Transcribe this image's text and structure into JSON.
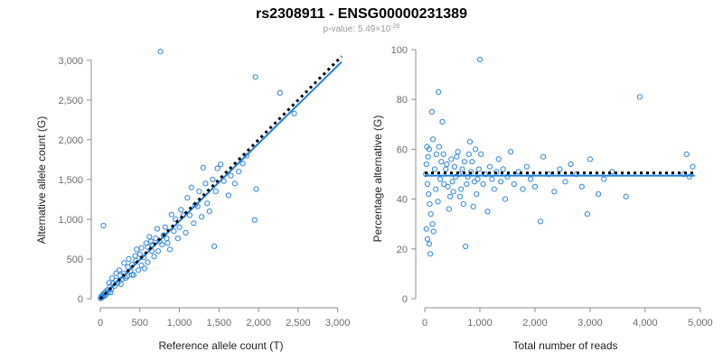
{
  "title": "rs2308911 - ENSG00000231389",
  "subtitle": {
    "prefix": "p-value: 5.49×10",
    "exponent": "-28"
  },
  "colors": {
    "points": "#2e86de",
    "fit_line": "#1f7fe0",
    "reference_line": "#000000"
  },
  "chart_data": [
    {
      "id": "left",
      "type": "scatter",
      "xlabel": "Reference allele count (T)",
      "ylabel": "Alternative allele count (G)",
      "xlim": [
        0,
        3050
      ],
      "ylim": [
        0,
        3100
      ],
      "xticks": [
        0,
        500,
        1000,
        1500,
        2000,
        2500,
        3000
      ],
      "xtick_labels": [
        "0",
        "500",
        "1,000",
        "1,500",
        "2,000",
        "2,500",
        "3,000"
      ],
      "yticks": [
        0,
        500,
        1000,
        1500,
        2000,
        2500,
        3000
      ],
      "ytick_labels": [
        "0",
        "500",
        "1,000",
        "1,500",
        "2,000",
        "2,500",
        "3,000"
      ],
      "fit_line": {
        "x": [
          0,
          3050
        ],
        "y": [
          0,
          2980
        ]
      },
      "reference_line": {
        "x": [
          0,
          3050
        ],
        "y": [
          0,
          3050
        ]
      },
      "points": [
        [
          760,
          3110
        ],
        [
          1960,
          2790
        ],
        [
          2270,
          2590
        ],
        [
          2450,
          2330
        ],
        [
          40,
          920
        ],
        [
          1950,
          990
        ],
        [
          1970,
          1380
        ],
        [
          1440,
          660
        ],
        [
          1480,
          1640
        ],
        [
          1520,
          1690
        ],
        [
          1620,
          1300
        ],
        [
          1700,
          1450
        ],
        [
          1800,
          1700
        ],
        [
          1300,
          1650
        ],
        [
          1420,
          1500
        ],
        [
          1250,
          1350
        ],
        [
          1150,
          1400
        ],
        [
          1200,
          1180
        ],
        [
          1350,
          1200
        ],
        [
          1100,
          1270
        ],
        [
          1050,
          1050
        ],
        [
          950,
          1000
        ],
        [
          900,
          1060
        ],
        [
          1000,
          900
        ],
        [
          850,
          700
        ],
        [
          800,
          800
        ],
        [
          750,
          720
        ],
        [
          700,
          760
        ],
        [
          650,
          600
        ],
        [
          600,
          650
        ],
        [
          550,
          520
        ],
        [
          500,
          560
        ],
        [
          450,
          480
        ],
        [
          400,
          430
        ],
        [
          380,
          350
        ],
        [
          350,
          400
        ],
        [
          300,
          320
        ],
        [
          280,
          250
        ],
        [
          250,
          290
        ],
        [
          220,
          200
        ],
        [
          200,
          230
        ],
        [
          180,
          160
        ],
        [
          160,
          190
        ],
        [
          140,
          120
        ],
        [
          120,
          150
        ],
        [
          100,
          80
        ],
        [
          90,
          110
        ],
        [
          80,
          60
        ],
        [
          70,
          90
        ],
        [
          60,
          40
        ],
        [
          50,
          70
        ],
        [
          40,
          30
        ],
        [
          30,
          50
        ],
        [
          25,
          20
        ],
        [
          20,
          35
        ],
        [
          15,
          10
        ],
        [
          10,
          25
        ],
        [
          5,
          5
        ],
        [
          300,
          450
        ],
        [
          420,
          300
        ],
        [
          520,
          420
        ],
        [
          620,
          780
        ],
        [
          680,
          530
        ],
        [
          730,
          600
        ],
        [
          820,
          900
        ],
        [
          880,
          620
        ],
        [
          930,
          850
        ],
        [
          980,
          760
        ],
        [
          1020,
          1120
        ],
        [
          1080,
          830
        ],
        [
          1130,
          1050
        ],
        [
          1180,
          950
        ],
        [
          1230,
          1160
        ],
        [
          1280,
          1030
        ],
        [
          1330,
          1450
        ],
        [
          1380,
          1100
        ],
        [
          1460,
          1350
        ],
        [
          1560,
          1480
        ],
        [
          1650,
          1550
        ],
        [
          1750,
          1600
        ],
        [
          1850,
          1800
        ],
        [
          560,
          380
        ],
        [
          600,
          460
        ],
        [
          640,
          720
        ],
        [
          460,
          620
        ],
        [
          480,
          360
        ],
        [
          360,
          500
        ],
        [
          320,
          260
        ],
        [
          240,
          360
        ],
        [
          260,
          180
        ],
        [
          200,
          320
        ],
        [
          150,
          260
        ],
        [
          130,
          80
        ],
        [
          110,
          200
        ],
        [
          580,
          700
        ],
        [
          660,
          680
        ],
        [
          720,
          880
        ],
        [
          780,
          680
        ],
        [
          840,
          760
        ],
        [
          520,
          640
        ],
        [
          440,
          540
        ],
        [
          400,
          300
        ],
        [
          340,
          280
        ]
      ]
    },
    {
      "id": "right",
      "type": "scatter",
      "xlabel": "Total number of reads",
      "ylabel": "Percentage alternative (G)",
      "xlim": [
        0,
        5100
      ],
      "ylim": [
        0,
        100
      ],
      "xticks": [
        0,
        1000,
        2000,
        3000,
        4000,
        5000
      ],
      "xtick_labels": [
        "0",
        "1,000",
        "2,000",
        "3,000",
        "4,000",
        "5,000"
      ],
      "yticks": [
        0,
        20,
        40,
        60,
        80,
        100
      ],
      "ytick_labels": [
        "0",
        "20",
        "40",
        "60",
        "80",
        "100"
      ],
      "fit_line": {
        "x": [
          0,
          4900
        ],
        "y": [
          49.4,
          49.4
        ]
      },
      "reference_line": {
        "x": [
          0,
          4900
        ],
        "y": [
          50.5,
          50.5
        ]
      },
      "points": [
        [
          1000,
          96
        ],
        [
          3900,
          81
        ],
        [
          250,
          83
        ],
        [
          130,
          75
        ],
        [
          320,
          71
        ],
        [
          40,
          61
        ],
        [
          80,
          60
        ],
        [
          60,
          57
        ],
        [
          30,
          54
        ],
        [
          20,
          50
        ],
        [
          50,
          46
        ],
        [
          70,
          42
        ],
        [
          90,
          38
        ],
        [
          110,
          34
        ],
        [
          140,
          30
        ],
        [
          30,
          28
        ],
        [
          50,
          24
        ],
        [
          80,
          22
        ],
        [
          100,
          18
        ],
        [
          160,
          27
        ],
        [
          200,
          44
        ],
        [
          240,
          39
        ],
        [
          280,
          48
        ],
        [
          300,
          55
        ],
        [
          340,
          58
        ],
        [
          380,
          52
        ],
        [
          420,
          45
        ],
        [
          460,
          41
        ],
        [
          500,
          47
        ],
        [
          540,
          53
        ],
        [
          580,
          57
        ],
        [
          620,
          50
        ],
        [
          660,
          44
        ],
        [
          700,
          38
        ],
        [
          740,
          21
        ],
        [
          780,
          49
        ],
        [
          820,
          63
        ],
        [
          860,
          55
        ],
        [
          900,
          47
        ],
        [
          940,
          42
        ],
        [
          980,
          52
        ],
        [
          1020,
          58
        ],
        [
          1060,
          46
        ],
        [
          1100,
          50
        ],
        [
          1140,
          35
        ],
        [
          1180,
          53
        ],
        [
          1220,
          48
        ],
        [
          1260,
          44
        ],
        [
          1300,
          51
        ],
        [
          1340,
          56
        ],
        [
          1380,
          47
        ],
        [
          1420,
          52
        ],
        [
          1460,
          40
        ],
        [
          1500,
          49
        ],
        [
          1560,
          59
        ],
        [
          1620,
          46
        ],
        [
          1700,
          51
        ],
        [
          1780,
          44
        ],
        [
          1850,
          53
        ],
        [
          1920,
          48
        ],
        [
          2000,
          45
        ],
        [
          2100,
          31
        ],
        [
          2150,
          57
        ],
        [
          2250,
          50
        ],
        [
          2350,
          43
        ],
        [
          2450,
          52
        ],
        [
          2550,
          47
        ],
        [
          2650,
          54
        ],
        [
          2750,
          50
        ],
        [
          2850,
          45
        ],
        [
          2950,
          34
        ],
        [
          3000,
          56
        ],
        [
          3150,
          42
        ],
        [
          3250,
          48
        ],
        [
          3400,
          51
        ],
        [
          3650,
          41
        ],
        [
          4750,
          58
        ],
        [
          4800,
          49
        ],
        [
          4860,
          53
        ],
        [
          4700,
          50
        ],
        [
          150,
          64
        ],
        [
          180,
          52
        ],
        [
          210,
          58
        ],
        [
          260,
          61
        ],
        [
          350,
          46
        ],
        [
          400,
          54
        ],
        [
          440,
          36
        ],
        [
          480,
          56
        ],
        [
          520,
          43
        ],
        [
          560,
          49
        ],
        [
          600,
          59
        ],
        [
          640,
          41
        ],
        [
          680,
          52
        ],
        [
          720,
          55
        ],
        [
          760,
          46
        ],
        [
          800,
          58
        ],
        [
          840,
          51
        ],
        [
          880,
          37
        ],
        [
          920,
          60
        ],
        [
          960,
          48
        ]
      ]
    }
  ]
}
